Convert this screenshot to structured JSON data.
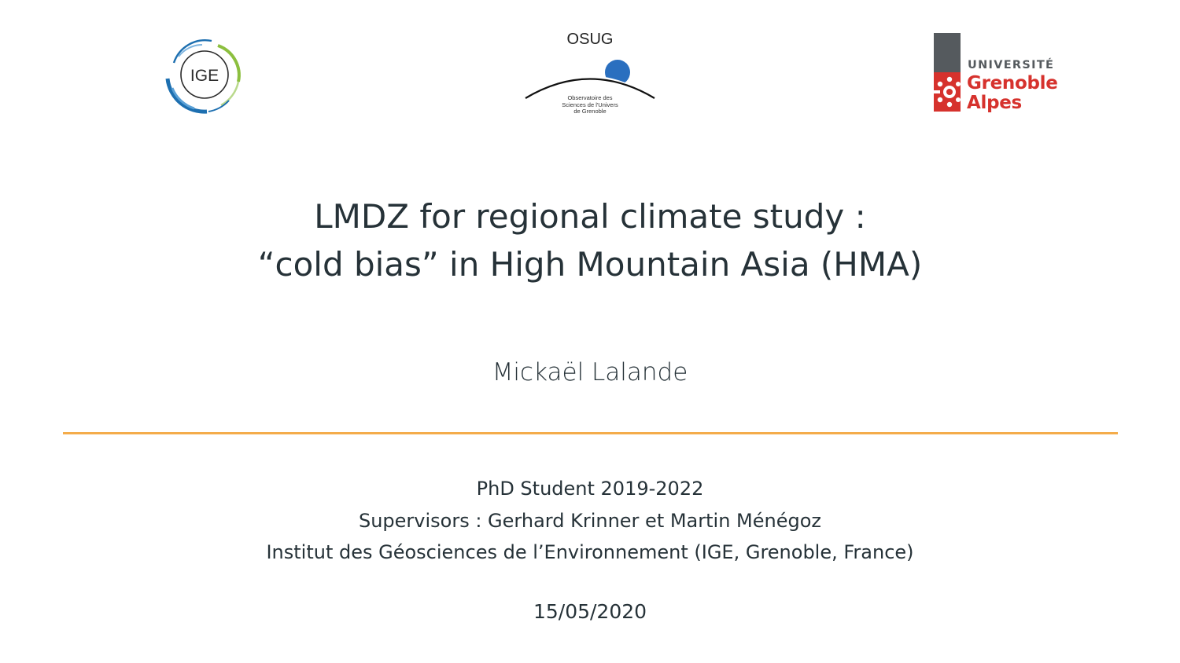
{
  "logos": {
    "ige": {
      "text": "IGE"
    },
    "osug": {
      "name": "OSUG",
      "subtitle_lines": [
        "Observatoire des",
        "Sciences de l'Univers",
        "de Grenoble"
      ]
    },
    "uga": {
      "line1": "UNIVERSITÉ",
      "line2": "Grenoble",
      "line3": "Alpes"
    }
  },
  "title": {
    "line1": "LMDZ for regional climate study :",
    "line2": "“cold bias” in High Mountain Asia (HMA)"
  },
  "author": "Mickaël Lalande",
  "info": {
    "line1": "PhD Student 2019-2022",
    "line2": "Supervisors : Gerhard Krinner et Martin Ménégoz",
    "line3": "Institut des Géosciences de l’Environnement (IGE, Grenoble, France)"
  },
  "date": "15/05/2020",
  "colors": {
    "text": "#263238",
    "divider": "#f4ac4a",
    "uga_red": "#d6322d",
    "uga_grey": "#555a5e",
    "ige_blue": "#1d6fb0",
    "ige_green": "#8cbf3f",
    "osug_blue": "#2a6fbf"
  }
}
